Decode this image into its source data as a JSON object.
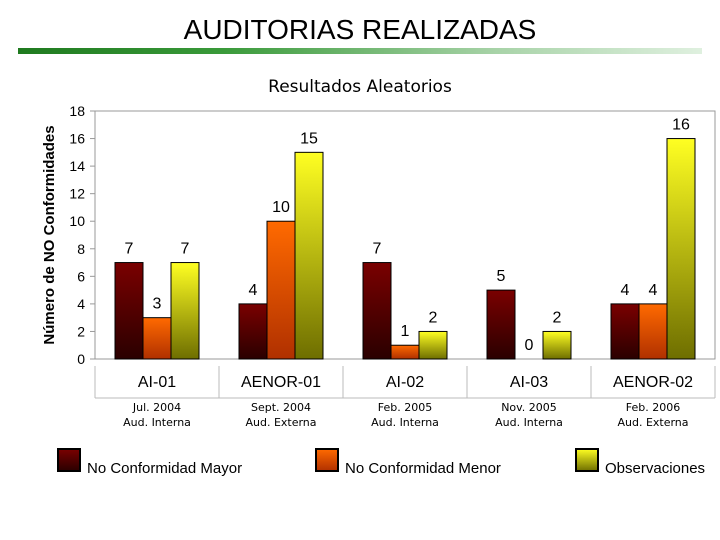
{
  "header": {
    "title": "AUDITORIAS REALIZADAS",
    "subtitle": "Resultados Aleatorios"
  },
  "chart_data": {
    "type": "bar",
    "title": "Resultados Aleatorios",
    "ylabel": "Número de NO Conformidades",
    "xlabel": "",
    "ylim": [
      0,
      18
    ],
    "yticks": [
      0,
      2,
      4,
      6,
      8,
      10,
      12,
      14,
      16,
      18
    ],
    "categories": [
      "AI-01",
      "AENOR-01",
      "AI-02",
      "AI-03",
      "AENOR-02"
    ],
    "category_details": [
      [
        "Jul. 2004",
        "Aud. Interna"
      ],
      [
        "Sept. 2004",
        "Aud. Externa"
      ],
      [
        "Feb. 2005",
        "Aud. Interna"
      ],
      [
        "Nov. 2005",
        "Aud. Interna"
      ],
      [
        "Feb. 2006",
        "Aud. Externa"
      ]
    ],
    "series": [
      {
        "name": "No Conformidad Mayor",
        "values": [
          7,
          4,
          7,
          5,
          4
        ],
        "color": "#8b0000"
      },
      {
        "name": "No Conformidad Menor",
        "values": [
          3,
          10,
          1,
          0,
          4
        ],
        "color": "#ff6600"
      },
      {
        "name": "Observaciones",
        "values": [
          7,
          15,
          2,
          2,
          16
        ],
        "color": "#ffff00"
      }
    ],
    "data_labels": true,
    "grid": false,
    "legend_position": "bottom"
  }
}
